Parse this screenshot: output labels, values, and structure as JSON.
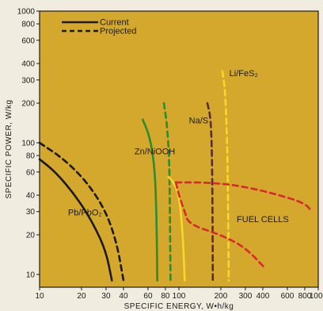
{
  "chart_data": {
    "type": "line",
    "xlabel": "SPECIFIC ENERGY, W•h/kg",
    "ylabel": "SPECIFIC POWER, W/kg",
    "xscale": "log",
    "yscale": "log",
    "xlim": [
      10,
      1000
    ],
    "ylim": [
      8,
      1000
    ],
    "grid": false,
    "background": "#d4a82c",
    "legend": {
      "placement": "top-left",
      "entries": [
        {
          "label": "Current",
          "style": "solid"
        },
        {
          "label": "Projected",
          "style": "dashed"
        }
      ]
    },
    "x_ticks": [
      {
        "value": 10,
        "label": "10"
      },
      {
        "value": 20,
        "label": "20"
      },
      {
        "value": 30,
        "label": "30"
      },
      {
        "value": 40,
        "label": "40"
      },
      {
        "value": 60,
        "label": "60"
      },
      {
        "value": 80,
        "label": "80"
      },
      {
        "value": 100,
        "label": "100"
      },
      {
        "value": 200,
        "label": "200"
      },
      {
        "value": 300,
        "label": "300"
      },
      {
        "value": 400,
        "label": "400"
      },
      {
        "value": 600,
        "label": "600"
      },
      {
        "value": 800,
        "label": "800"
      },
      {
        "value": 1000,
        "label": "1000"
      }
    ],
    "y_ticks": [
      {
        "value": 10,
        "label": "10"
      },
      {
        "value": 20,
        "label": "20"
      },
      {
        "value": 30,
        "label": "30"
      },
      {
        "value": 40,
        "label": "40"
      },
      {
        "value": 60,
        "label": "60"
      },
      {
        "value": 80,
        "label": "80"
      },
      {
        "value": 100,
        "label": "100"
      },
      {
        "value": 200,
        "label": "200"
      },
      {
        "value": 300,
        "label": "300"
      },
      {
        "value": 400,
        "label": "400"
      },
      {
        "value": 600,
        "label": "600"
      },
      {
        "value": 800,
        "label": "800"
      },
      {
        "value": 1000,
        "label": "1000"
      }
    ],
    "series": [
      {
        "group": "Pb/PbO2",
        "status": "current",
        "color": "#1a1a1a",
        "style": "solid",
        "points": [
          [
            10,
            75
          ],
          [
            13,
            60
          ],
          [
            18,
            40
          ],
          [
            24,
            25
          ],
          [
            30,
            15
          ],
          [
            33,
            9
          ]
        ]
      },
      {
        "group": "Pb/PbO2",
        "status": "projected",
        "color": "#1a1a1a",
        "style": "dashed",
        "points": [
          [
            10,
            100
          ],
          [
            15,
            75
          ],
          [
            22,
            50
          ],
          [
            30,
            30
          ],
          [
            36,
            17
          ],
          [
            40,
            9
          ]
        ]
      },
      {
        "group": "Zn/NiOOH",
        "status": "current",
        "color": "#2e8b2e",
        "style": "solid",
        "points": [
          [
            55,
            150
          ],
          [
            62,
            110
          ],
          [
            67,
            65
          ],
          [
            69,
            30
          ],
          [
            70,
            9
          ]
        ]
      },
      {
        "group": "Zn/NiOOH",
        "status": "projected",
        "color": "#2e8b2e",
        "style": "dashed",
        "points": [
          [
            78,
            200
          ],
          [
            82,
            140
          ],
          [
            85,
            80
          ],
          [
            86,
            40
          ],
          [
            87,
            9
          ]
        ]
      },
      {
        "group": "Zn/NiOOH",
        "status": "variant",
        "color": "#f5d82a",
        "style": "solid",
        "points": [
          [
            84,
            55
          ],
          [
            92,
            50
          ],
          [
            100,
            40
          ],
          [
            105,
            25
          ],
          [
            108,
            15
          ],
          [
            110,
            9
          ]
        ]
      },
      {
        "group": "Na/S",
        "status": "projected",
        "color": "#5a2a3a",
        "style": "dashed",
        "points": [
          [
            160,
            200
          ],
          [
            168,
            160
          ],
          [
            172,
            100
          ],
          [
            174,
            40
          ],
          [
            175,
            9
          ]
        ]
      },
      {
        "group": "Li/FeS2",
        "status": "projected",
        "color": "#f5d82a",
        "style": "dashed",
        "points": [
          [
            205,
            350
          ],
          [
            215,
            250
          ],
          [
            222,
            100
          ],
          [
            225,
            40
          ],
          [
            228,
            9
          ]
        ]
      },
      {
        "group": "Fuel Cells",
        "status": "projected",
        "color": "#d9282f",
        "style": "dashed",
        "points": [
          [
            95,
            50
          ],
          [
            150,
            50
          ],
          [
            250,
            48
          ],
          [
            450,
            42
          ],
          [
            800,
            35
          ],
          [
            900,
            30
          ]
        ]
      },
      {
        "group": "Fuel Cells",
        "status": "projected",
        "color": "#d9282f",
        "style": "dashed",
        "points": [
          [
            95,
            50
          ],
          [
            100,
            40
          ],
          [
            110,
            30
          ],
          [
            118,
            24
          ],
          [
            200,
            20
          ],
          [
            300,
            16
          ],
          [
            420,
            11
          ]
        ]
      }
    ],
    "labels": [
      {
        "text": "Pb/PbO₂",
        "x": 16,
        "y": 28
      },
      {
        "text": "Zn/NiOOH",
        "x": 48,
        "y": 82
      },
      {
        "text": "Na/S",
        "x": 118,
        "y": 140
      },
      {
        "text": "Li/FeS₂",
        "x": 230,
        "y": 320
      },
      {
        "text": "FUEL CELLS",
        "x": 260,
        "y": 25
      }
    ]
  }
}
